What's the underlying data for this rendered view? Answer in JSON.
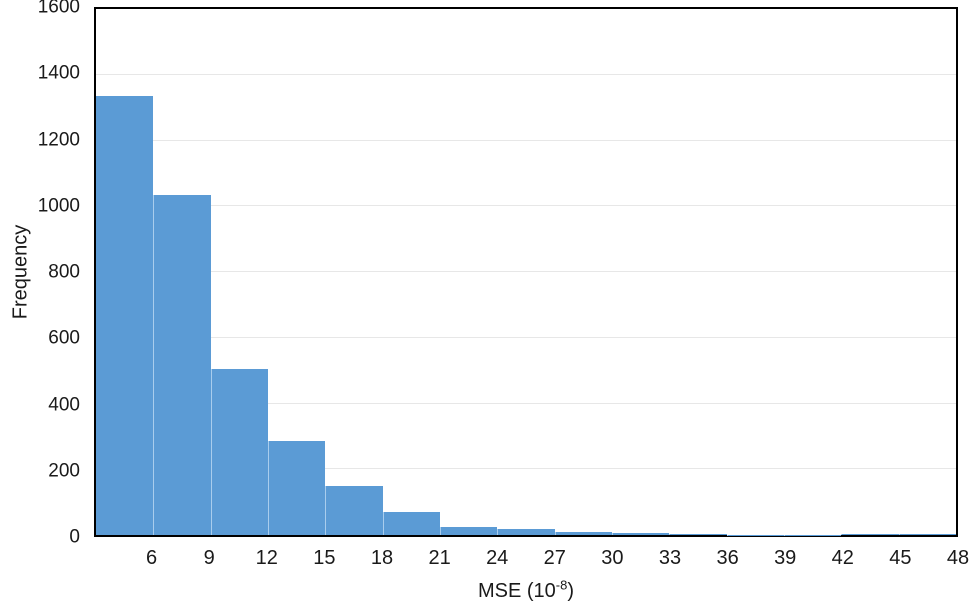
{
  "chart_data": {
    "type": "bar",
    "subtype": "histogram",
    "title": "",
    "xlabel": "MSE (10^-8)",
    "xlabel_parts": {
      "base": "MSE (10",
      "exp": "-8",
      "close": ")"
    },
    "ylabel": "Frequency",
    "bin_edges": [
      3,
      6,
      9,
      12,
      15,
      18,
      21,
      24,
      27,
      30,
      33,
      36,
      39,
      42,
      45,
      48
    ],
    "x_tick_labels": [
      "6",
      "9",
      "12",
      "15",
      "18",
      "21",
      "24",
      "27",
      "30",
      "33",
      "36",
      "39",
      "42",
      "45",
      "48"
    ],
    "values": [
      1335,
      1035,
      505,
      285,
      150,
      70,
      25,
      18,
      10,
      6,
      4,
      1,
      1,
      2,
      2
    ],
    "ylim": [
      0,
      1600
    ],
    "y_ticks": [
      0,
      200,
      400,
      600,
      800,
      1000,
      1200,
      1400,
      1600
    ],
    "y_gridlines": [
      200,
      400,
      600,
      800,
      1000,
      1200,
      1400
    ],
    "grid": "horizontal",
    "legend": "none",
    "colors": {
      "bar_fill": "#5B9BD5",
      "bar_separator": "#A9CDED",
      "gridline": "#E7E7E7",
      "axis_border": "#000000",
      "text": "#1a1a1a",
      "background": "#FFFFFF"
    }
  }
}
